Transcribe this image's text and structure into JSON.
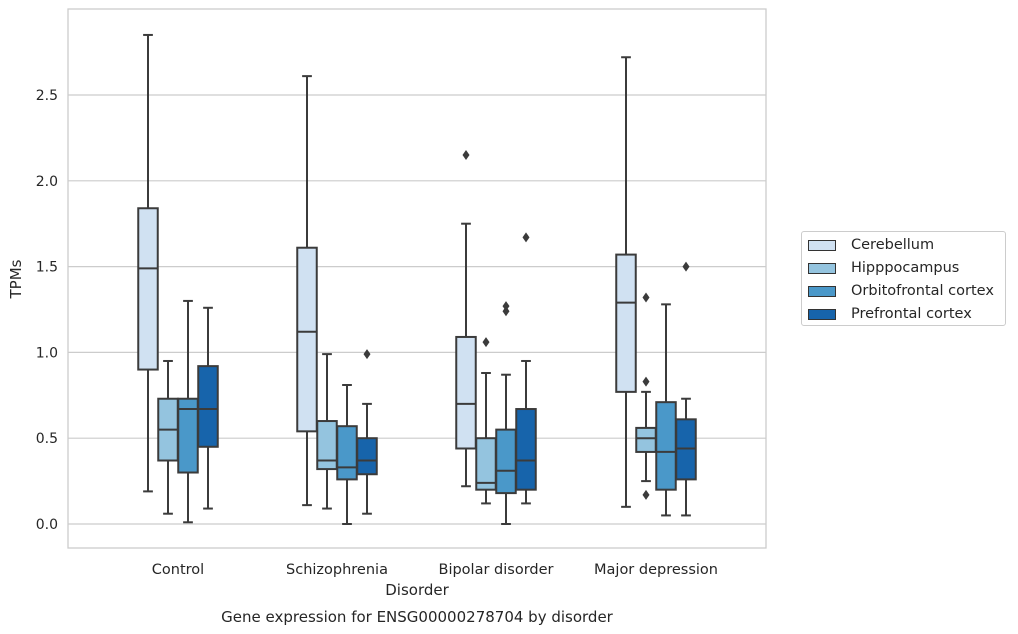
{
  "chart_data": {
    "type": "box",
    "title": "Gene expression for ENSG00000278704 by disorder",
    "xlabel": "Disorder",
    "ylabel": "TPMs",
    "ylim": [
      -0.14,
      2.98
    ],
    "yticks": [
      "0.0",
      "0.5",
      "1.0",
      "1.5",
      "2.0",
      "2.5"
    ],
    "categories": [
      "Control",
      "Schizophrenia",
      "Bipolar disorder",
      "Major depression"
    ],
    "grid": "horizontal",
    "legend_position": "right",
    "series": [
      {
        "name": "Cerebellum",
        "color": "#d0e1f2",
        "boxes": [
          {
            "whisker_low": 0.19,
            "q1": 0.9,
            "median": 1.49,
            "q3": 1.84,
            "whisker_high": 2.85,
            "outliers": []
          },
          {
            "whisker_low": 0.11,
            "q1": 0.54,
            "median": 1.12,
            "q3": 1.61,
            "whisker_high": 2.61,
            "outliers": []
          },
          {
            "whisker_low": 0.22,
            "q1": 0.44,
            "median": 0.7,
            "q3": 1.09,
            "whisker_high": 1.75,
            "outliers": [
              2.15
            ]
          },
          {
            "whisker_low": 0.1,
            "q1": 0.77,
            "median": 1.29,
            "q3": 1.57,
            "whisker_high": 2.72,
            "outliers": []
          }
        ]
      },
      {
        "name": "Hipppocampus",
        "color": "#94c4df",
        "boxes": [
          {
            "whisker_low": 0.06,
            "q1": 0.37,
            "median": 0.55,
            "q3": 0.73,
            "whisker_high": 0.95,
            "outliers": []
          },
          {
            "whisker_low": 0.09,
            "q1": 0.32,
            "median": 0.37,
            "q3": 0.6,
            "whisker_high": 0.99,
            "outliers": []
          },
          {
            "whisker_low": 0.12,
            "q1": 0.2,
            "median": 0.24,
            "q3": 0.5,
            "whisker_high": 0.88,
            "outliers": [
              1.06
            ]
          },
          {
            "whisker_low": 0.25,
            "q1": 0.42,
            "median": 0.5,
            "q3": 0.56,
            "whisker_high": 0.77,
            "outliers": [
              1.32,
              0.83,
              0.17
            ]
          }
        ]
      },
      {
        "name": "Orbitofrontal cortex",
        "color": "#4a98c9",
        "boxes": [
          {
            "whisker_low": 0.01,
            "q1": 0.3,
            "median": 0.67,
            "q3": 0.73,
            "whisker_high": 1.3,
            "outliers": []
          },
          {
            "whisker_low": 0.0,
            "q1": 0.26,
            "median": 0.33,
            "q3": 0.57,
            "whisker_high": 0.81,
            "outliers": []
          },
          {
            "whisker_low": 0.0,
            "q1": 0.18,
            "median": 0.31,
            "q3": 0.55,
            "whisker_high": 0.87,
            "outliers": [
              1.27,
              1.24
            ]
          },
          {
            "whisker_low": 0.05,
            "q1": 0.2,
            "median": 0.42,
            "q3": 0.71,
            "whisker_high": 1.28,
            "outliers": []
          }
        ]
      },
      {
        "name": "Prefrontal cortex",
        "color": "#1764ab",
        "boxes": [
          {
            "whisker_low": 0.09,
            "q1": 0.45,
            "median": 0.67,
            "q3": 0.92,
            "whisker_high": 1.26,
            "outliers": []
          },
          {
            "whisker_low": 0.06,
            "q1": 0.29,
            "median": 0.37,
            "q3": 0.5,
            "whisker_high": 0.7,
            "outliers": [
              0.99
            ]
          },
          {
            "whisker_low": 0.12,
            "q1": 0.2,
            "median": 0.37,
            "q3": 0.67,
            "whisker_high": 0.95,
            "outliers": [
              1.67
            ]
          },
          {
            "whisker_low": 0.05,
            "q1": 0.26,
            "median": 0.44,
            "q3": 0.61,
            "whisker_high": 0.73,
            "outliers": [
              1.5
            ]
          }
        ]
      }
    ]
  }
}
